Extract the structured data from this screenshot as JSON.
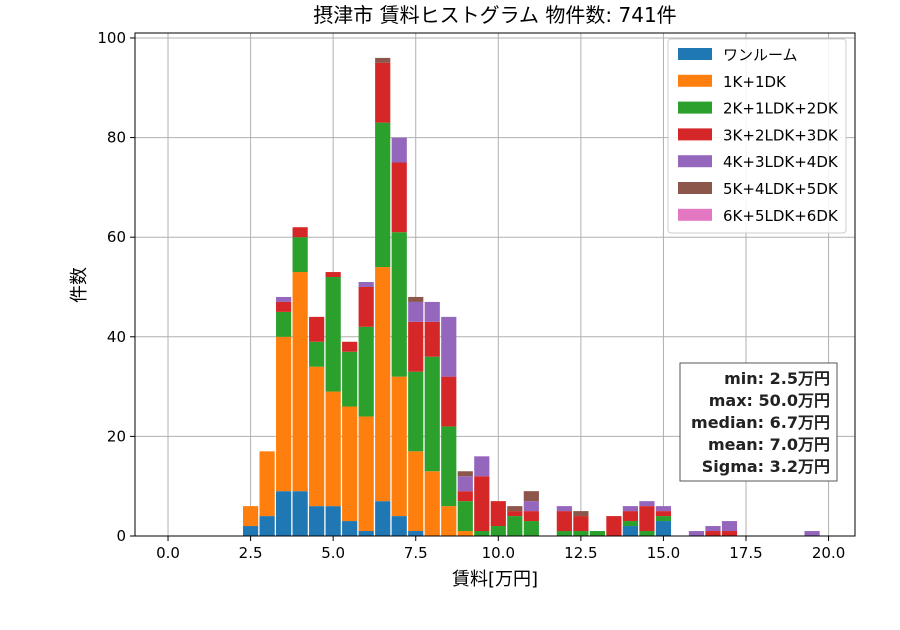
{
  "chart_data": {
    "type": "bar",
    "stacked": true,
    "title": "摂津市 賃料ヒストグラム 物件数: 741件",
    "xlabel": "賃料[万円]",
    "ylabel": "件数",
    "xlim": [
      -1.0,
      20.8
    ],
    "ylim": [
      0,
      101
    ],
    "xticks": [
      "0.0",
      "2.5",
      "5.0",
      "7.5",
      "10.0",
      "12.5",
      "15.0",
      "17.5",
      "20.0"
    ],
    "yticks": [
      "0",
      "20",
      "40",
      "60",
      "80",
      "100"
    ],
    "grid": true,
    "legend_position": "top-right",
    "bin_width": 0.5,
    "x": [
      2.5,
      3.0,
      3.5,
      4.0,
      4.5,
      5.0,
      5.5,
      6.0,
      6.5,
      7.0,
      7.5,
      8.0,
      8.5,
      9.0,
      9.5,
      10.0,
      10.5,
      11.0,
      12.0,
      12.5,
      13.0,
      13.5,
      14.0,
      14.5,
      15.0,
      16.0,
      16.5,
      17.0,
      19.5
    ],
    "series": [
      {
        "name": "ワンルーム",
        "color": "#1f77b4",
        "values": [
          2,
          4,
          9,
          9,
          6,
          6,
          3,
          1,
          7,
          4,
          1,
          0,
          0,
          0,
          0,
          0,
          0,
          0,
          0,
          0,
          0,
          0,
          2,
          0,
          3,
          0,
          0,
          0,
          0
        ]
      },
      {
        "name": "1K+1DK",
        "color": "#ff7f0e",
        "values": [
          4,
          13,
          31,
          44,
          28,
          23,
          23,
          23,
          47,
          28,
          16,
          13,
          6,
          1,
          0,
          0,
          0,
          0,
          0,
          0,
          0,
          0,
          0,
          0,
          0,
          0,
          0,
          0,
          0
        ]
      },
      {
        "name": "2K+1LDK+2DK",
        "color": "#2ca02c",
        "values": [
          0,
          0,
          5,
          7,
          5,
          23,
          11,
          18,
          29,
          29,
          16,
          23,
          16,
          6,
          1,
          2,
          4,
          3,
          1,
          1,
          1,
          0,
          1,
          1,
          1,
          0,
          0,
          0,
          0
        ]
      },
      {
        "name": "3K+2LDK+3DK",
        "color": "#d62728",
        "values": [
          0,
          0,
          2,
          2,
          5,
          1,
          2,
          8,
          12,
          14,
          10,
          7,
          10,
          2,
          11,
          5,
          1,
          2,
          4,
          3,
          0,
          4,
          2,
          5,
          1,
          0,
          1,
          1,
          0
        ]
      },
      {
        "name": "4K+3LDK+4DK",
        "color": "#9467bd",
        "values": [
          0,
          0,
          1,
          0,
          0,
          0,
          0,
          1,
          0,
          5,
          4,
          4,
          12,
          3,
          4,
          0,
          0,
          2,
          1,
          0,
          0,
          0,
          1,
          1,
          1,
          1,
          1,
          2,
          1
        ]
      },
      {
        "name": "5K+4LDK+5DK",
        "color": "#8c564b",
        "values": [
          0,
          0,
          0,
          0,
          0,
          0,
          0,
          0,
          1,
          0,
          1,
          0,
          0,
          1,
          0,
          0,
          1,
          2,
          0,
          1,
          0,
          0,
          0,
          0,
          0,
          0,
          0,
          0,
          0
        ]
      },
      {
        "name": "6K+5LDK+6DK",
        "color": "#e377c2",
        "values": [
          0,
          0,
          0,
          0,
          0,
          0,
          0,
          0,
          0,
          0,
          0,
          0,
          0,
          0,
          0,
          0,
          0,
          0,
          0,
          0,
          0,
          0,
          0,
          0,
          0,
          0,
          0,
          0,
          0
        ]
      }
    ],
    "stats": {
      "min": "min: 2.5万円",
      "max": "max: 50.0万円",
      "median": "median: 6.7万円",
      "mean": "mean: 7.0万円",
      "sigma": "Sigma: 3.2万円"
    }
  }
}
